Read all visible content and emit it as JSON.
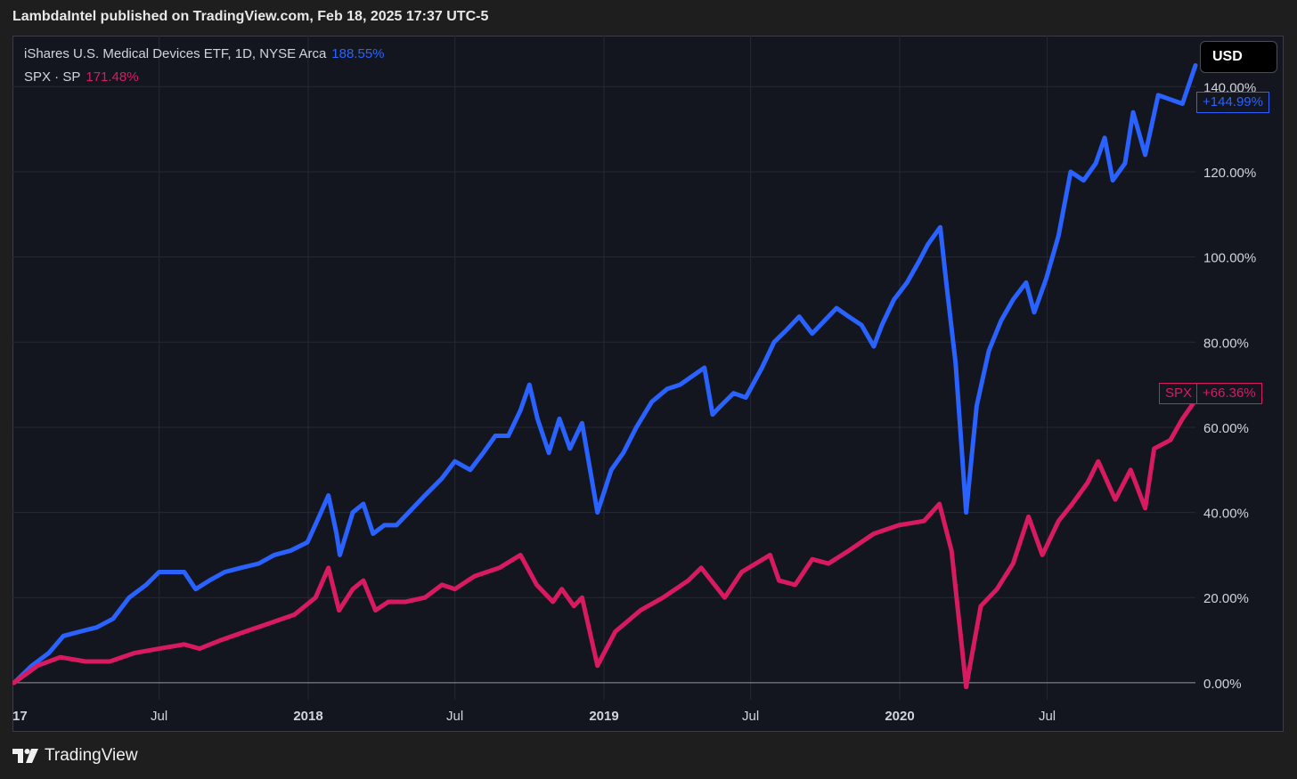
{
  "header": {
    "publish_line": "LambdaIntel published on TradingView.com, Feb 18, 2025 17:37 UTC-5"
  },
  "legend": {
    "series1_label": "iShares U.S. Medical Devices ETF, 1D, NYSE Arca",
    "series1_value": "188.55%",
    "series2_label": "SPX · SP",
    "series2_value": "171.48%"
  },
  "toolbar": {
    "currency_label": "USD"
  },
  "price_tags": {
    "ihi_last": "+144.99%",
    "spx_symbol": "SPX",
    "spx_last": "+66.36%"
  },
  "footer": {
    "brand": "TradingView",
    "logo_icon": "tradingview-logo-icon"
  },
  "colors": {
    "ihi": "#2962ff",
    "spx": "#d81b60",
    "background": "#14161f",
    "grid": "#252834",
    "axis_text": "#d1d4dc"
  },
  "chart_data": {
    "type": "line",
    "title": "",
    "xlabel": "",
    "ylabel": "",
    "y_unit": "%",
    "ylim": [
      -4,
      152
    ],
    "xlim": [
      "2017-01-01",
      "2020-12-31"
    ],
    "grid": true,
    "legend_position": "top-left",
    "x_ticks": [
      {
        "date": "2017-01-01",
        "label": "17"
      },
      {
        "date": "2017-07-01",
        "label": "Jul"
      },
      {
        "date": "2018-01-01",
        "label": "2018"
      },
      {
        "date": "2018-07-01",
        "label": "Jul"
      },
      {
        "date": "2019-01-01",
        "label": "2019"
      },
      {
        "date": "2019-07-01",
        "label": "Jul"
      },
      {
        "date": "2020-01-01",
        "label": "2020"
      },
      {
        "date": "2020-07-01",
        "label": "Jul"
      }
    ],
    "y_ticks": [
      {
        "value": 0,
        "label": "0.00%"
      },
      {
        "value": 20,
        "label": "20.00%"
      },
      {
        "value": 40,
        "label": "40.00%"
      },
      {
        "value": 60,
        "label": "60.00%"
      },
      {
        "value": 80,
        "label": "80.00%"
      },
      {
        "value": 100,
        "label": "100.00%"
      },
      {
        "value": 120,
        "label": "120.00%"
      },
      {
        "value": 140,
        "label": "140.00%"
      }
    ],
    "series": [
      {
        "name": "iShares U.S. Medical Devices ETF",
        "color": "#2962ff",
        "points": [
          [
            "2017-01-03",
            0
          ],
          [
            "2017-01-25",
            4
          ],
          [
            "2017-02-15",
            7
          ],
          [
            "2017-03-05",
            11
          ],
          [
            "2017-03-25",
            12
          ],
          [
            "2017-04-15",
            13
          ],
          [
            "2017-05-05",
            15
          ],
          [
            "2017-05-25",
            20
          ],
          [
            "2017-06-15",
            23
          ],
          [
            "2017-07-01",
            26
          ],
          [
            "2017-07-15",
            26
          ],
          [
            "2017-08-01",
            26
          ],
          [
            "2017-08-15",
            22
          ],
          [
            "2017-09-01",
            24
          ],
          [
            "2017-09-20",
            26
          ],
          [
            "2017-10-10",
            27
          ],
          [
            "2017-11-01",
            28
          ],
          [
            "2017-11-20",
            30
          ],
          [
            "2017-12-10",
            31
          ],
          [
            "2017-12-31",
            33
          ],
          [
            "2018-01-12",
            38
          ],
          [
            "2018-01-26",
            44
          ],
          [
            "2018-02-05",
            35
          ],
          [
            "2018-02-09",
            30
          ],
          [
            "2018-02-25",
            40
          ],
          [
            "2018-03-10",
            42
          ],
          [
            "2018-03-22",
            35
          ],
          [
            "2018-04-05",
            37
          ],
          [
            "2018-04-20",
            37
          ],
          [
            "2018-05-05",
            40
          ],
          [
            "2018-05-25",
            44
          ],
          [
            "2018-06-15",
            48
          ],
          [
            "2018-07-01",
            52
          ],
          [
            "2018-07-20",
            50
          ],
          [
            "2018-08-05",
            54
          ],
          [
            "2018-08-20",
            58
          ],
          [
            "2018-09-05",
            58
          ],
          [
            "2018-09-20",
            64
          ],
          [
            "2018-10-01",
            70
          ],
          [
            "2018-10-11",
            62
          ],
          [
            "2018-10-25",
            54
          ],
          [
            "2018-11-07",
            62
          ],
          [
            "2018-11-20",
            55
          ],
          [
            "2018-12-05",
            61
          ],
          [
            "2018-12-24",
            40
          ],
          [
            "2019-01-10",
            50
          ],
          [
            "2019-01-25",
            54
          ],
          [
            "2019-02-10",
            60
          ],
          [
            "2019-03-01",
            66
          ],
          [
            "2019-03-20",
            69
          ],
          [
            "2019-04-05",
            70
          ],
          [
            "2019-04-20",
            72
          ],
          [
            "2019-05-05",
            74
          ],
          [
            "2019-05-15",
            63
          ],
          [
            "2019-05-25",
            65
          ],
          [
            "2019-06-10",
            68
          ],
          [
            "2019-06-25",
            67
          ],
          [
            "2019-07-15",
            74
          ],
          [
            "2019-07-30",
            80
          ],
          [
            "2019-08-15",
            83
          ],
          [
            "2019-08-30",
            86
          ],
          [
            "2019-09-15",
            82
          ],
          [
            "2019-09-30",
            85
          ],
          [
            "2019-10-15",
            88
          ],
          [
            "2019-10-30",
            86
          ],
          [
            "2019-11-15",
            84
          ],
          [
            "2019-11-30",
            79
          ],
          [
            "2019-12-10",
            84
          ],
          [
            "2019-12-25",
            90
          ],
          [
            "2020-01-10",
            94
          ],
          [
            "2020-01-25",
            99
          ],
          [
            "2020-02-05",
            103
          ],
          [
            "2020-02-20",
            107
          ],
          [
            "2020-02-28",
            93
          ],
          [
            "2020-03-10",
            75
          ],
          [
            "2020-03-23",
            40
          ],
          [
            "2020-04-05",
            65
          ],
          [
            "2020-04-20",
            78
          ],
          [
            "2020-05-05",
            85
          ],
          [
            "2020-05-20",
            90
          ],
          [
            "2020-06-05",
            94
          ],
          [
            "2020-06-15",
            87
          ],
          [
            "2020-06-30",
            95
          ],
          [
            "2020-07-15",
            105
          ],
          [
            "2020-07-30",
            120
          ],
          [
            "2020-08-15",
            118
          ],
          [
            "2020-08-30",
            122
          ],
          [
            "2020-09-10",
            128
          ],
          [
            "2020-09-20",
            118
          ],
          [
            "2020-10-05",
            122
          ],
          [
            "2020-10-15",
            134
          ],
          [
            "2020-10-30",
            124
          ],
          [
            "2020-11-15",
            138
          ],
          [
            "2020-11-30",
            137
          ],
          [
            "2020-12-15",
            136
          ],
          [
            "2020-12-31",
            144.99
          ]
        ]
      },
      {
        "name": "SPX · SP",
        "color": "#d81b60",
        "points": [
          [
            "2017-01-03",
            0
          ],
          [
            "2017-02-01",
            4
          ],
          [
            "2017-03-01",
            6
          ],
          [
            "2017-04-01",
            5
          ],
          [
            "2017-05-01",
            5
          ],
          [
            "2017-06-01",
            7
          ],
          [
            "2017-07-01",
            8
          ],
          [
            "2017-08-01",
            9
          ],
          [
            "2017-08-20",
            8
          ],
          [
            "2017-09-15",
            10
          ],
          [
            "2017-10-15",
            12
          ],
          [
            "2017-11-15",
            14
          ],
          [
            "2017-12-15",
            16
          ],
          [
            "2018-01-10",
            20
          ],
          [
            "2018-01-26",
            27
          ],
          [
            "2018-02-08",
            17
          ],
          [
            "2018-02-25",
            22
          ],
          [
            "2018-03-10",
            24
          ],
          [
            "2018-03-25",
            17
          ],
          [
            "2018-04-10",
            19
          ],
          [
            "2018-05-01",
            19
          ],
          [
            "2018-05-25",
            20
          ],
          [
            "2018-06-15",
            23
          ],
          [
            "2018-07-01",
            22
          ],
          [
            "2018-07-25",
            25
          ],
          [
            "2018-08-25",
            27
          ],
          [
            "2018-09-20",
            30
          ],
          [
            "2018-10-10",
            23
          ],
          [
            "2018-10-30",
            19
          ],
          [
            "2018-11-10",
            22
          ],
          [
            "2018-11-25",
            18
          ],
          [
            "2018-12-05",
            20
          ],
          [
            "2018-12-24",
            4
          ],
          [
            "2019-01-15",
            12
          ],
          [
            "2019-02-15",
            17
          ],
          [
            "2019-03-15",
            20
          ],
          [
            "2019-04-15",
            24
          ],
          [
            "2019-05-01",
            27
          ],
          [
            "2019-05-30",
            20
          ],
          [
            "2019-06-20",
            26
          ],
          [
            "2019-07-25",
            30
          ],
          [
            "2019-08-05",
            24
          ],
          [
            "2019-08-25",
            23
          ],
          [
            "2019-09-15",
            29
          ],
          [
            "2019-10-05",
            28
          ],
          [
            "2019-10-30",
            31
          ],
          [
            "2019-11-30",
            35
          ],
          [
            "2019-12-31",
            37
          ],
          [
            "2020-01-31",
            38
          ],
          [
            "2020-02-19",
            42
          ],
          [
            "2020-03-05",
            31
          ],
          [
            "2020-03-23",
            -1
          ],
          [
            "2020-04-10",
            18
          ],
          [
            "2020-04-30",
            22
          ],
          [
            "2020-05-20",
            28
          ],
          [
            "2020-06-08",
            39
          ],
          [
            "2020-06-25",
            30
          ],
          [
            "2020-07-15",
            38
          ],
          [
            "2020-08-01",
            42
          ],
          [
            "2020-08-20",
            47
          ],
          [
            "2020-09-02",
            52
          ],
          [
            "2020-09-23",
            43
          ],
          [
            "2020-10-12",
            50
          ],
          [
            "2020-10-30",
            41
          ],
          [
            "2020-11-10",
            55
          ],
          [
            "2020-11-30",
            57
          ],
          [
            "2020-12-15",
            62
          ],
          [
            "2020-12-31",
            66.36
          ]
        ]
      }
    ]
  }
}
